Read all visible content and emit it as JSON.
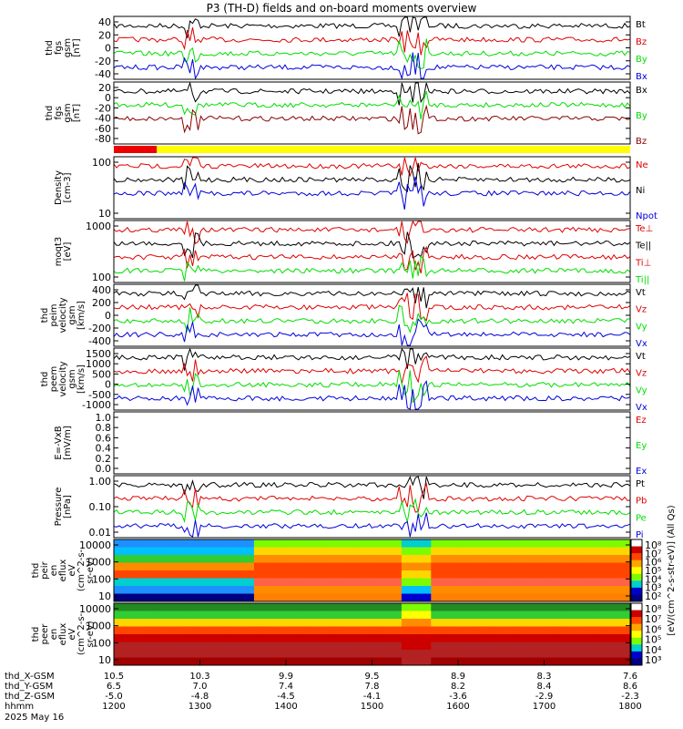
{
  "title": "P3 (TH-D) fields and on-board moments overview",
  "colors": {
    "black": "#000000",
    "red": "#e00000",
    "green": "#00dd00",
    "blue": "#0000dd",
    "darkred": "#880000",
    "yellow": "#ffff00",
    "barred": "#ee0000"
  },
  "chart_data": [
    {
      "type": "line",
      "ylabel": [
        "thd",
        "fgs",
        "gsm",
        "[nT]"
      ],
      "yticks": [
        "40",
        "20",
        "0",
        "-20",
        "-40"
      ],
      "ylim": [
        -48,
        48
      ],
      "legend": [
        {
          "name": "Bt",
          "color": "black"
        },
        {
          "name": "Bz",
          "color": "red"
        },
        {
          "name": "By",
          "color": "green"
        },
        {
          "name": "Bx",
          "color": "blue"
        }
      ]
    },
    {
      "type": "line",
      "ylabel": [
        "thd",
        "fgs",
        "gsm",
        "[nT]"
      ],
      "yticks": [
        "20",
        "0",
        "-20",
        "-40",
        "-60",
        "-80"
      ],
      "ylim": [
        -92,
        25
      ],
      "legend": [
        {
          "name": "Bx",
          "color": "black"
        },
        {
          "name": "By",
          "color": "green"
        },
        {
          "name": "Bz",
          "color": "darkred"
        }
      ]
    },
    {
      "type": "bar",
      "note": "mode bar",
      "segments": [
        {
          "color": "barred",
          "from": 1200,
          "to": 1250
        },
        {
          "color": "yellow",
          "from": 1250,
          "to": 1800
        }
      ]
    },
    {
      "type": "line",
      "ylabel": [
        "Density",
        "[cm-3]"
      ],
      "yticks": [
        "100",
        "10"
      ],
      "yscale": "log",
      "legend": [
        {
          "name": "Ne",
          "color": "red"
        },
        {
          "name": "Ni",
          "color": "black"
        },
        {
          "name": "Npot",
          "color": "blue"
        }
      ]
    },
    {
      "type": "line",
      "ylabel": [
        "moqt3",
        "[eV]"
      ],
      "yticks": [
        "1000",
        "100"
      ],
      "yscale": "log",
      "legend": [
        {
          "name": "Te⊥",
          "color": "red"
        },
        {
          "name": "Te||",
          "color": "black"
        },
        {
          "name": "Ti⊥",
          "color": "red"
        },
        {
          "name": "Ti||",
          "color": "green"
        }
      ]
    },
    {
      "type": "line",
      "ylabel": [
        "thd",
        "peim",
        "velocity",
        "gsm",
        "[km/s]"
      ],
      "yticks": [
        "400",
        "200",
        "0",
        "-200",
        "-400"
      ],
      "ylim": [
        -420,
        420
      ],
      "legend": [
        {
          "name": "Vt",
          "color": "black"
        },
        {
          "name": "Vz",
          "color": "red"
        },
        {
          "name": "Vy",
          "color": "green"
        },
        {
          "name": "Vx",
          "color": "blue"
        }
      ]
    },
    {
      "type": "line",
      "ylabel": [
        "thd",
        "peem",
        "velocity",
        "gsm",
        "[km/s]"
      ],
      "yticks": [
        "1500",
        "1000",
        "500",
        "0",
        "-500",
        "-1000"
      ],
      "ylim": [
        -1100,
        1600
      ],
      "legend": [
        {
          "name": "Vt",
          "color": "black"
        },
        {
          "name": "Vz",
          "color": "red"
        },
        {
          "name": "Vy",
          "color": "green"
        },
        {
          "name": "Vx",
          "color": "blue"
        }
      ]
    },
    {
      "type": "line",
      "ylabel": [
        "E=-VxB",
        "[mV/m]"
      ],
      "yticks": [
        "1.0",
        "0.8",
        "0.6",
        "0.4",
        "0.2",
        "0.0"
      ],
      "ylim": [
        0,
        1
      ],
      "legend": [
        {
          "name": "Ez",
          "color": "red"
        },
        {
          "name": "Ey",
          "color": "green"
        },
        {
          "name": "Ex",
          "color": "blue"
        }
      ]
    },
    {
      "type": "line",
      "ylabel": [
        "Pressure",
        "[nPa]"
      ],
      "yticks": [
        "1.00",
        "0.10",
        "0.01"
      ],
      "yscale": "log",
      "legend": [
        {
          "name": "Pt",
          "color": "black"
        },
        {
          "name": "Pb",
          "color": "red"
        },
        {
          "name": "Pe",
          "color": "green"
        },
        {
          "name": "Pi",
          "color": "blue"
        }
      ]
    },
    {
      "type": "heatmap",
      "ylabel": [
        "thd",
        "peir",
        "en",
        "eflux",
        "eV",
        "(cm^2-s-",
        "sr-eV)"
      ],
      "yticks": [
        "10000",
        "1000",
        "100",
        "10"
      ],
      "yscale": "log"
    },
    {
      "type": "heatmap",
      "ylabel": [
        "thd",
        "peer",
        "en",
        "eflux",
        "eV",
        "(cm^2-s-",
        "sr-eV)"
      ],
      "yticks": [
        "10000",
        "1000",
        "100",
        "10"
      ],
      "yscale": "log"
    }
  ],
  "colorbar": {
    "label": "[eV/(cm^2-s-str-eV)] (All Qs)",
    "ticks1": [
      "10^8",
      "10^7",
      "10^6",
      "10^5",
      "10^4",
      "10^3",
      "10^2"
    ],
    "ticks2": [
      "10^8",
      "10^7",
      "10^6",
      "10^5",
      "10^4",
      "10^3"
    ]
  },
  "footer": {
    "labels": [
      "thd_X-GSM",
      "thd_Y-GSM",
      "thd_Z-GSM",
      "hhmm",
      "2025 May 16"
    ],
    "xgsm": [
      "10.5",
      "10.3",
      "9.9",
      "9.5",
      "8.9",
      "8.3",
      "7.6"
    ],
    "ygsm": [
      "6.5",
      "7.0",
      "7.4",
      "7.8",
      "8.2",
      "8.4",
      "8.6"
    ],
    "zgsm": [
      "-5.0",
      "-4.8",
      "-4.5",
      "-4.1",
      "-3.6",
      "-2.9",
      "-2.3"
    ],
    "hhmm": [
      "1200",
      "1300",
      "1400",
      "1500",
      "1600",
      "1700",
      "1800"
    ]
  }
}
